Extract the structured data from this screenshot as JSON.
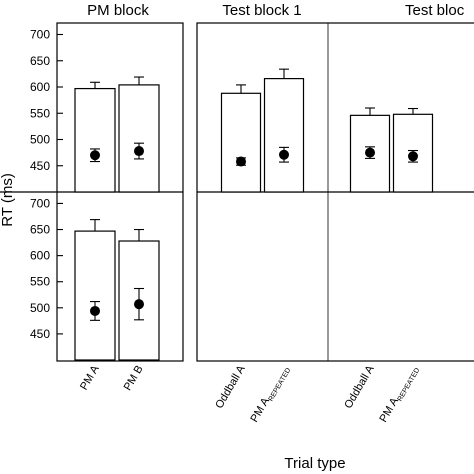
{
  "chart_data": {
    "type": "bar",
    "column_titles": [
      "PM block",
      "Test block 1",
      "Test bloc"
    ],
    "ylabel": "RT (ms)",
    "xlabel": "Trial type",
    "ylim": [
      400,
      720
    ],
    "yticks": [
      450,
      500,
      550,
      600,
      650,
      700
    ],
    "rows": [
      "top",
      "bottom"
    ],
    "panels": [
      {
        "column": 0,
        "row": 0,
        "categories": [
          "PM A",
          "PM B"
        ],
        "bars": [
          {
            "value": 597,
            "err": 12
          },
          {
            "value": 604,
            "err": 15
          }
        ],
        "means": [
          {
            "value": 470,
            "err": 12
          },
          {
            "value": 478,
            "err": 15
          }
        ]
      },
      {
        "column": 0,
        "row": 1,
        "categories": [
          "PM A",
          "PM B"
        ],
        "bars": [
          {
            "value": 647,
            "err": 22
          },
          {
            "value": 628,
            "err": 22
          }
        ],
        "means": [
          {
            "value": 494,
            "err": 18
          },
          {
            "value": 507,
            "err": 30
          }
        ]
      },
      {
        "column": 1,
        "row": 0,
        "categories": [
          "Oddball A",
          "PM A|REPEATED"
        ],
        "bars": [
          {
            "value": 588,
            "err": 16
          },
          {
            "value": 616,
            "err": 18
          }
        ],
        "means": [
          {
            "value": 458,
            "err": 7
          },
          {
            "value": 471,
            "err": 14
          }
        ]
      },
      {
        "column": 2,
        "row": 0,
        "categories": [
          "Oddball A",
          "PM A|REPEATED"
        ],
        "bars": [
          {
            "value": 546,
            "err": 14
          },
          {
            "value": 548,
            "err": 11
          }
        ],
        "means": [
          {
            "value": 475,
            "err": 11
          },
          {
            "value": 468,
            "err": 11
          }
        ]
      }
    ],
    "x_tick_labels": [
      {
        "column": 0,
        "labels": [
          "PM A",
          "PM B"
        ]
      },
      {
        "column": 1,
        "labels": [
          "Oddball A",
          "PM A|REPEATED"
        ]
      },
      {
        "column": 2,
        "labels": [
          "Oddball A",
          "PM A|REPEATED"
        ]
      }
    ]
  }
}
